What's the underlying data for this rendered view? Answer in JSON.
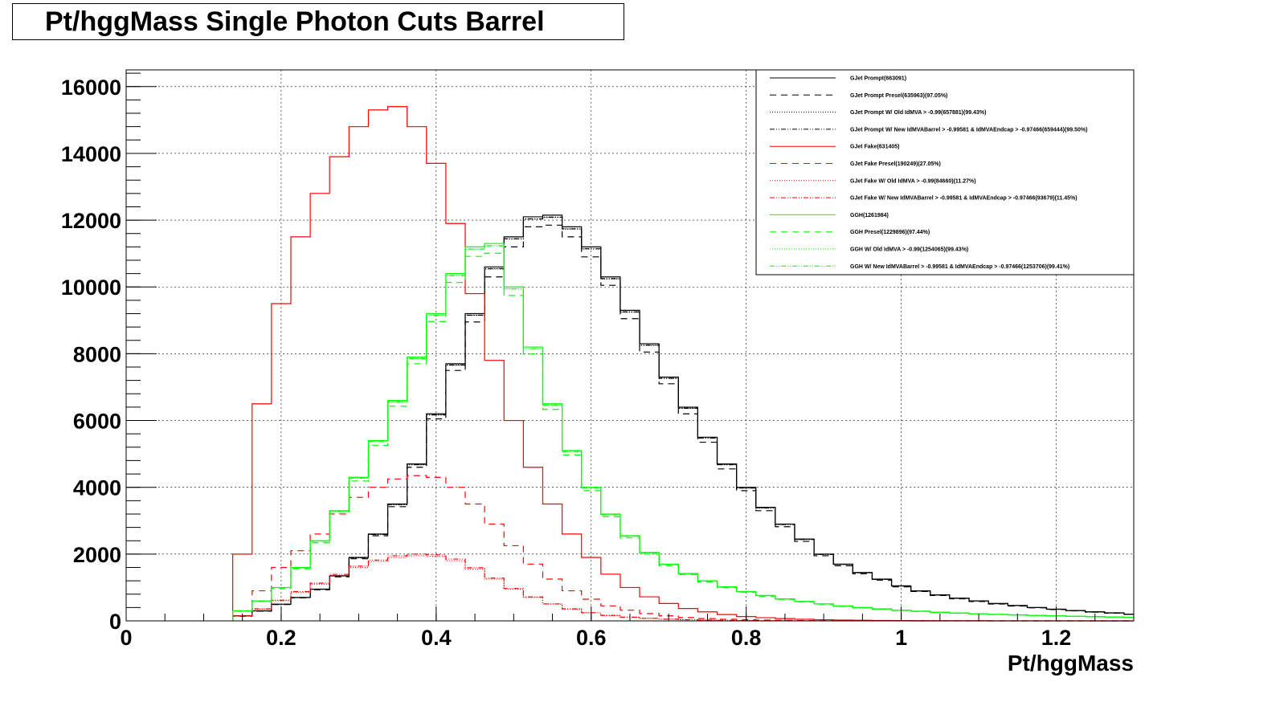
{
  "title": "Pt/hggMass Single Photon Cuts Barrel",
  "chart_data": {
    "type": "line",
    "title": "Pt/hggMass Single Photon Cuts Barrel",
    "xlabel": "Pt/hggMass",
    "ylabel": "",
    "xlim": [
      0,
      1.3
    ],
    "ylim": [
      0,
      16500
    ],
    "grid": true,
    "legend_position": "top-right",
    "x_ticks": [
      "0",
      "0.2",
      "0.4",
      "0.6",
      "0.8",
      "1",
      "1.2"
    ],
    "y_ticks": [
      "0",
      "2000",
      "4000",
      "6000",
      "8000",
      "10000",
      "12000",
      "14000",
      "16000"
    ],
    "x": [
      0.15,
      0.175,
      0.2,
      0.225,
      0.25,
      0.275,
      0.3,
      0.325,
      0.35,
      0.375,
      0.4,
      0.425,
      0.45,
      0.475,
      0.5,
      0.525,
      0.55,
      0.575,
      0.6,
      0.625,
      0.65,
      0.675,
      0.7,
      0.725,
      0.75,
      0.775,
      0.8,
      0.825,
      0.85,
      0.875,
      0.9,
      0.925,
      0.95,
      0.975,
      1.0,
      1.025,
      1.05,
      1.075,
      1.1,
      1.125,
      1.15,
      1.175,
      1.2,
      1.225,
      1.25,
      1.275,
      1.3
    ],
    "series": [
      {
        "name": "GJet Prompt(663091)",
        "color": "#000000",
        "dash": "",
        "values": [
          150,
          300,
          500,
          700,
          950,
          1350,
          1900,
          2600,
          3500,
          4700,
          6200,
          7700,
          9200,
          10600,
          11500,
          12100,
          12150,
          11800,
          11200,
          10300,
          9300,
          8300,
          7300,
          6400,
          5500,
          4700,
          4000,
          3400,
          2900,
          2450,
          2000,
          1700,
          1450,
          1250,
          1050,
          900,
          780,
          680,
          600,
          520,
          460,
          400,
          350,
          310,
          270,
          240,
          200
        ]
      },
      {
        "name": "GJet Prompt Presel(635963)(97.05%)",
        "color": "#000000",
        "dash": "8,6",
        "values": [
          140,
          290,
          490,
          690,
          930,
          1320,
          1860,
          2550,
          3420,
          4600,
          6050,
          7500,
          8950,
          10300,
          11200,
          11800,
          11850,
          11500,
          10900,
          10050,
          9050,
          8050,
          7100,
          6200,
          5350,
          4550,
          3900,
          3300,
          2820,
          2380,
          1950,
          1650,
          1410,
          1220,
          1020,
          880,
          760,
          660,
          580,
          505,
          445,
          390,
          340,
          300,
          260,
          230,
          195
        ]
      },
      {
        "name": "GJet Prompt W/ Old IdMVA > -0.99(657881)(99.43%)",
        "color": "#000000",
        "dash": "1,2",
        "values": [
          149,
          298,
          497,
          696,
          945,
          1343,
          1890,
          2585,
          3480,
          4675,
          6165,
          7655,
          9150,
          10540,
          11435,
          12030,
          12080,
          11735,
          11135,
          10240,
          9245,
          8250,
          7260,
          6365,
          5470,
          4675,
          3975,
          3380,
          2885,
          2435,
          1990,
          1690,
          1440,
          1243,
          1044,
          895,
          775,
          676,
          597,
          517,
          457,
          398,
          348,
          308,
          268,
          239,
          199
        ]
      },
      {
        "name": "GJet Prompt W/ New IdMVABarrel > -0.99581 & IdMVAEndcap > -0.97466(659444)(99.50%)",
        "color": "#000000",
        "dash": "6,2,1,2,1,2",
        "values": [
          149,
          299,
          498,
          697,
          945,
          1344,
          1891,
          2587,
          3483,
          4677,
          6169,
          7662,
          9154,
          10547,
          11443,
          12040,
          12090,
          11740,
          11144,
          10249,
          9254,
          8259,
          7264,
          6368,
          5473,
          4677,
          3980,
          3383,
          2886,
          2438,
          1990,
          1692,
          1443,
          1244,
          1045,
          896,
          776,
          677,
          597,
          517,
          458,
          398,
          348,
          308,
          269,
          239,
          199
        ]
      },
      {
        "name": "GJet Fake(631405)",
        "color": "#ff0000",
        "dash": "",
        "values": [
          2000,
          6500,
          9500,
          11500,
          12800,
          13900,
          14800,
          15300,
          15400,
          14800,
          13700,
          11900,
          9800,
          7800,
          6000,
          4600,
          3500,
          2600,
          1900,
          1400,
          1000,
          720,
          520,
          370,
          270,
          190,
          130,
          95,
          70,
          50,
          35,
          25,
          18,
          13,
          9,
          7,
          5,
          4,
          3,
          2,
          2,
          1,
          1,
          1,
          0,
          0,
          0
        ]
      },
      {
        "name": "GJet Fake Presel(190249)(27.05%)",
        "color": "#ff0000",
        "dash": "8,6",
        "values": [
          300,
          900,
          1600,
          2100,
          2600,
          3200,
          3700,
          4000,
          4250,
          4350,
          4300,
          4000,
          3500,
          2900,
          2250,
          1700,
          1250,
          900,
          650,
          450,
          320,
          220,
          150,
          100,
          70,
          50,
          35,
          25,
          18,
          12,
          8,
          6,
          4,
          3,
          2,
          2,
          1,
          1,
          1,
          0,
          0,
          0,
          0,
          0,
          0,
          0,
          0
        ]
      },
      {
        "name": "GJet Fake W/ Old IdMVA > -0.99(84660)(11.27%)",
        "color": "#ff0000",
        "dash": "1,2",
        "values": [
          150,
          350,
          600,
          850,
          1100,
          1350,
          1600,
          1780,
          1900,
          1950,
          1930,
          1800,
          1550,
          1250,
          950,
          700,
          500,
          350,
          240,
          160,
          110,
          75,
          50,
          34,
          23,
          15,
          10,
          7,
          5,
          3,
          2,
          2,
          1,
          1,
          1,
          0,
          0,
          0,
          0,
          0,
          0,
          0,
          0,
          0,
          0,
          0,
          0
        ]
      },
      {
        "name": "GJet Fake W/ New IdMVABarrel > -0.99581 & IdMVAEndcap > -0.97466(93679)(11.45%)",
        "color": "#ff0000",
        "dash": "6,2,1,2,1,2",
        "values": [
          155,
          360,
          620,
          880,
          1130,
          1390,
          1640,
          1820,
          1950,
          2000,
          1980,
          1850,
          1590,
          1280,
          970,
          715,
          510,
          360,
          245,
          165,
          112,
          77,
          51,
          35,
          24,
          16,
          10,
          7,
          5,
          3,
          2,
          2,
          1,
          1,
          1,
          0,
          0,
          0,
          0,
          0,
          0,
          0,
          0,
          0,
          0,
          0,
          0
        ]
      },
      {
        "name": "GGH(1261984)",
        "color": "#00ff00",
        "dash": "",
        "values": [
          300,
          600,
          1000,
          1600,
          2400,
          3300,
          4300,
          5400,
          6600,
          7900,
          9200,
          10400,
          11200,
          11300,
          10000,
          8200,
          6500,
          5100,
          4000,
          3200,
          2550,
          2050,
          1700,
          1420,
          1200,
          1020,
          880,
          760,
          660,
          580,
          510,
          450,
          400,
          360,
          320,
          290,
          260,
          235,
          215,
          195,
          180,
          165,
          150,
          138,
          127,
          117,
          108
        ]
      },
      {
        "name": "GGH Presel(1229896)(97.44%)",
        "color": "#00ff00",
        "dash": "8,6",
        "values": [
          290,
          585,
          975,
          1560,
          2340,
          3215,
          4190,
          5260,
          6430,
          7700,
          8965,
          10135,
          10915,
          11010,
          9745,
          7990,
          6335,
          4970,
          3900,
          3120,
          2485,
          2000,
          1655,
          1385,
          1170,
          995,
          858,
          740,
          643,
          565,
          497,
          438,
          390,
          351,
          312,
          283,
          253,
          229,
          210,
          190,
          175,
          161,
          146,
          134,
          124,
          114,
          105
        ]
      },
      {
        "name": "GGH W/ Old IdMVA > -0.99(1254065)(99.43%)",
        "color": "#00ff00",
        "dash": "1,2",
        "values": [
          298,
          597,
          994,
          1591,
          2386,
          3281,
          4276,
          5369,
          6562,
          7855,
          9148,
          10340,
          11136,
          11236,
          9943,
          8153,
          6463,
          5071,
          3977,
          3182,
          2535,
          2038,
          1690,
          1412,
          1193,
          1014,
          875,
          756,
          656,
          577,
          507,
          447,
          398,
          358,
          318,
          288,
          259,
          234,
          214,
          194,
          179,
          164,
          149,
          137,
          126,
          116,
          107
        ]
      },
      {
        "name": "GGH W/ New IdMVABarrel > -0.99581 & IdMVAEndcap > -0.97466(1253706)(99.41%)",
        "color": "#00ff00",
        "dash": "6,2,1,2,1,2",
        "values": [
          298,
          596,
          994,
          1590,
          2386,
          3281,
          4275,
          5368,
          6561,
          7853,
          9146,
          10339,
          11134,
          11233,
          9941,
          8152,
          6462,
          5070,
          3976,
          3181,
          2535,
          2038,
          1690,
          1412,
          1193,
          1014,
          875,
          756,
          656,
          577,
          507,
          447,
          398,
          358,
          318,
          288,
          258,
          234,
          214,
          194,
          179,
          164,
          149,
          137,
          126,
          116,
          107
        ]
      }
    ]
  }
}
